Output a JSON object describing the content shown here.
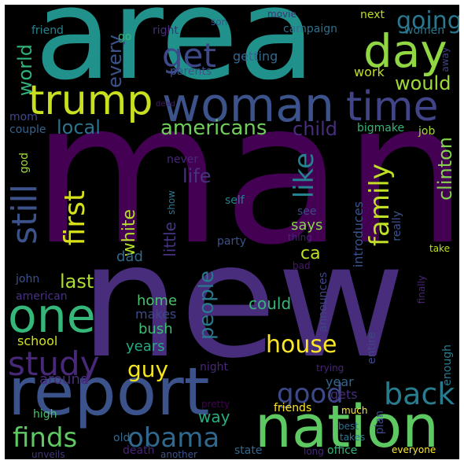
{
  "colors": {
    "background": "#000000",
    "frame": "#ffffff"
  },
  "words": [
    {
      "text": "area",
      "color": "#21918c",
      "vertical": false
    },
    {
      "text": "man",
      "color": "#440154",
      "vertical": false
    },
    {
      "text": "new",
      "color": "#472d7b",
      "vertical": false
    },
    {
      "text": "report",
      "color": "#3b528b",
      "vertical": false
    },
    {
      "text": "nation",
      "color": "#5ec962",
      "vertical": false
    },
    {
      "text": "woman",
      "color": "#3b528b",
      "vertical": false
    },
    {
      "text": "trump",
      "color": "#c8e020",
      "vertical": false
    },
    {
      "text": "time",
      "color": "#414487",
      "vertical": false
    },
    {
      "text": "day",
      "color": "#90d743",
      "vertical": false
    },
    {
      "text": "one",
      "color": "#35b779",
      "vertical": false
    },
    {
      "text": "study",
      "color": "#482878",
      "vertical": false
    },
    {
      "text": "get",
      "color": "#3e4989",
      "vertical": false
    },
    {
      "text": "finds",
      "color": "#5ec962",
      "vertical": false
    },
    {
      "text": "obama",
      "color": "#31688e",
      "vertical": false
    },
    {
      "text": "back",
      "color": "#287c8e",
      "vertical": false
    },
    {
      "text": "good",
      "color": "#3e4989",
      "vertical": false
    },
    {
      "text": "house",
      "color": "#fde725",
      "vertical": false
    },
    {
      "text": "guy",
      "color": "#f3e51e",
      "vertical": false
    },
    {
      "text": "americans",
      "color": "#6ece58",
      "vertical": false
    },
    {
      "text": "family",
      "color": "#c0df25",
      "vertical": true
    },
    {
      "text": "first",
      "color": "#d8e219",
      "vertical": true
    },
    {
      "text": "still",
      "color": "#3b528b",
      "vertical": true
    },
    {
      "text": "like",
      "color": "#26828e",
      "vertical": true
    },
    {
      "text": "people",
      "color": "#2a788e",
      "vertical": true
    },
    {
      "text": "clinton",
      "color": "#84d44b",
      "vertical": true
    },
    {
      "text": "going",
      "color": "#2a788e",
      "vertical": false
    },
    {
      "text": "would",
      "color": "#a0da39",
      "vertical": false
    },
    {
      "text": "child",
      "color": "#472d7b",
      "vertical": false
    },
    {
      "text": "local",
      "color": "#2c728e",
      "vertical": false
    },
    {
      "text": "world",
      "color": "#2fb47c",
      "vertical": true
    },
    {
      "text": "every",
      "color": "#3b528b",
      "vertical": true
    },
    {
      "text": "white",
      "color": "#b5de2b",
      "vertical": true
    },
    {
      "text": "little",
      "color": "#463480",
      "vertical": true
    },
    {
      "text": "life",
      "color": "#46327e",
      "vertical": false
    },
    {
      "text": "last",
      "color": "#addc30",
      "vertical": false
    },
    {
      "text": "ca",
      "color": "#bddf26",
      "vertical": false
    },
    {
      "text": "says",
      "color": "#86d549",
      "vertical": false
    },
    {
      "text": "dad",
      "color": "#31688e",
      "vertical": false
    },
    {
      "text": "could",
      "color": "#35b779",
      "vertical": false
    },
    {
      "text": "home",
      "color": "#4ac16d",
      "vertical": false
    },
    {
      "text": "makes",
      "color": "#3e4989",
      "vertical": false
    },
    {
      "text": "bush",
      "color": "#3dbc74",
      "vertical": false
    },
    {
      "text": "years",
      "color": "#25ab82",
      "vertical": false
    },
    {
      "text": "school",
      "color": "#d2e21b",
      "vertical": false
    },
    {
      "text": "around",
      "color": "#472d7b",
      "vertical": false
    },
    {
      "text": "way",
      "color": "#29af7f",
      "vertical": false
    },
    {
      "text": "year",
      "color": "#31688e",
      "vertical": false
    },
    {
      "text": "gets",
      "color": "#472d7b",
      "vertical": false
    },
    {
      "text": "friends",
      "color": "#fde725",
      "vertical": false
    },
    {
      "text": "old",
      "color": "#31688e",
      "vertical": false
    },
    {
      "text": "death",
      "color": "#482475",
      "vertical": false
    },
    {
      "text": "state",
      "color": "#31688e",
      "vertical": false
    },
    {
      "text": "office",
      "color": "#35b779",
      "vertical": false
    },
    {
      "text": "everyone",
      "color": "#fde725",
      "vertical": false
    },
    {
      "text": "another",
      "color": "#3b528b",
      "vertical": false
    },
    {
      "text": "unveils",
      "color": "#463480",
      "vertical": false
    },
    {
      "text": "long",
      "color": "#482878",
      "vertical": false
    },
    {
      "text": "best",
      "color": "#2c728e",
      "vertical": false
    },
    {
      "text": "takes",
      "color": "#2a788e",
      "vertical": false
    },
    {
      "text": "much",
      "color": "#fde725",
      "vertical": false
    },
    {
      "text": "plan",
      "color": "#3e4989",
      "vertical": true
    },
    {
      "text": "high",
      "color": "#4ac16d",
      "vertical": false
    },
    {
      "text": "pretty",
      "color": "#440154",
      "vertical": false
    },
    {
      "text": "night",
      "color": "#482878",
      "vertical": false
    },
    {
      "text": "trying",
      "color": "#482475",
      "vertical": false
    },
    {
      "text": "entire",
      "color": "#404688",
      "vertical": true
    },
    {
      "text": "enough",
      "color": "#287c8e",
      "vertical": true
    },
    {
      "text": "announces",
      "color": "#414487",
      "vertical": true
    },
    {
      "text": "introduces",
      "color": "#3b528b",
      "vertical": true
    },
    {
      "text": "really",
      "color": "#3b528b",
      "vertical": true
    },
    {
      "text": "finally",
      "color": "#482475",
      "vertical": true
    },
    {
      "text": "take",
      "color": "#c2df23",
      "vertical": false
    },
    {
      "text": "bad",
      "color": "#48186a",
      "vertical": false
    },
    {
      "text": "thing",
      "color": "#482475",
      "vertical": false
    },
    {
      "text": "see",
      "color": "#3e4989",
      "vertical": false
    },
    {
      "text": "party",
      "color": "#3b528b",
      "vertical": false
    },
    {
      "text": "self",
      "color": "#26828e",
      "vertical": false
    },
    {
      "text": "show",
      "color": "#2a788e",
      "vertical": true
    },
    {
      "text": "never",
      "color": "#482878",
      "vertical": false
    },
    {
      "text": "john",
      "color": "#3b528b",
      "vertical": false
    },
    {
      "text": "american",
      "color": "#46327e",
      "vertical": false
    },
    {
      "text": "mom",
      "color": "#3e4989",
      "vertical": false
    },
    {
      "text": "couple",
      "color": "#33638d",
      "vertical": false
    },
    {
      "text": "god",
      "color": "#a2da37",
      "vertical": true
    },
    {
      "text": "friend",
      "color": "#26828e",
      "vertical": false
    },
    {
      "text": "go",
      "color": "#35b779",
      "vertical": false
    },
    {
      "text": "right",
      "color": "#472d7b",
      "vertical": false
    },
    {
      "text": "parents",
      "color": "#3b528b",
      "vertical": false
    },
    {
      "text": "getting",
      "color": "#31688e",
      "vertical": false
    },
    {
      "text": "work",
      "color": "#c2df23",
      "vertical": false
    },
    {
      "text": "dead",
      "color": "#48186a",
      "vertical": false
    },
    {
      "text": "bigmake",
      "color": "#35b779",
      "vertical": false
    },
    {
      "text": "job",
      "color": "#a5db36",
      "vertical": false
    },
    {
      "text": "campaign",
      "color": "#2c728e",
      "vertical": false
    },
    {
      "text": "women",
      "color": "#2a788e",
      "vertical": false
    },
    {
      "text": "next",
      "color": "#bddf26",
      "vertical": false
    },
    {
      "text": "son",
      "color": "#3b528b",
      "vertical": false
    },
    {
      "text": "movie",
      "color": "#472d7b",
      "vertical": false
    },
    {
      "text": "away",
      "color": "#414487",
      "vertical": true
    }
  ]
}
